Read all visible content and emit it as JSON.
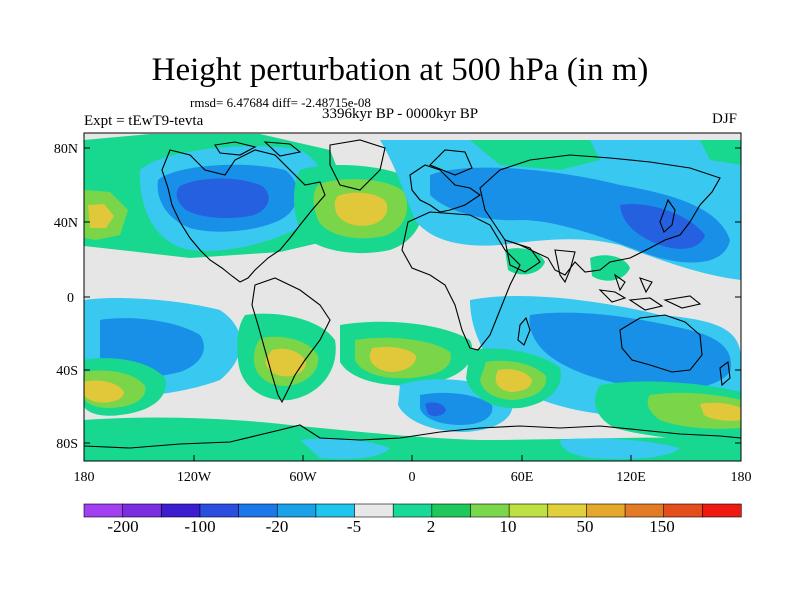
{
  "title": "Height perturbation at 500 hPa (in m)",
  "stats": "rmsd= 6.47684 diff= -2.48715e-08",
  "period": "3396kyr BP - 0000kyr BP",
  "experiment": "Expt = tEwT9-tevta",
  "season": "DJF",
  "axes": {
    "lat_ticks": [
      "80N",
      "40N",
      "0",
      "40S",
      "80S"
    ],
    "lon_ticks": [
      "180",
      "120W",
      "60W",
      "0",
      "60E",
      "120E",
      "180"
    ]
  },
  "colorbar": {
    "labels": [
      "-200",
      "-100",
      "-20",
      "-5",
      "2",
      "10",
      "50",
      "150"
    ],
    "colors": [
      "#a040f0",
      "#7a2ee0",
      "#3c1ed0",
      "#2a4ee0",
      "#1c78e8",
      "#1aa2e8",
      "#1ec6ee",
      "#e8e8e8",
      "#18d89a",
      "#1ec85a",
      "#7ad64a",
      "#bee040",
      "#e2d03a",
      "#e4a82a",
      "#e27a26",
      "#e44e1c",
      "#ee1a12"
    ]
  },
  "field_colors": {
    "neutral": "#e6e6e6",
    "neg_light": "#38c8f0",
    "neg_mid": "#1890e8",
    "neg_strong": "#2460e0",
    "pos_light": "#18d890",
    "pos_mid": "#7ad648",
    "pos_strong": "#e0c83a"
  }
}
